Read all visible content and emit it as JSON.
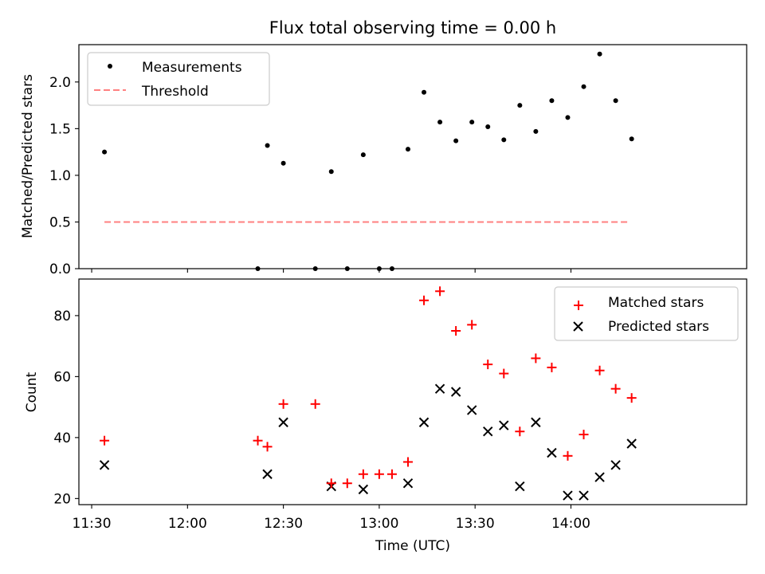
{
  "title": "Flux total observing time = 0.00 h",
  "colors": {
    "measurement": "#000000",
    "threshold": "#ff8080",
    "matched": "#ff0000",
    "predicted": "#000000"
  },
  "chart_data": [
    {
      "type": "scatter",
      "ylabel": "Matched/Predicted stars",
      "xlabel": "",
      "ylim": [
        0,
        2.4
      ],
      "yticks": [
        "0.0",
        "0.5",
        "1.0",
        "1.5",
        "2.0"
      ],
      "xlim": [
        "11:26",
        "14:55"
      ],
      "legend": {
        "placement": "top-left"
      },
      "series": [
        {
          "name": "Measurements",
          "marker": "dot",
          "points": [
            {
              "x": "11:34",
              "y": 1.25
            },
            {
              "x": "12:22",
              "y": 0.0
            },
            {
              "x": "12:25",
              "y": 1.32
            },
            {
              "x": "12:30",
              "y": 1.13
            },
            {
              "x": "12:40",
              "y": 0.0
            },
            {
              "x": "12:45",
              "y": 1.04
            },
            {
              "x": "12:50",
              "y": 0.0
            },
            {
              "x": "12:55",
              "y": 1.22
            },
            {
              "x": "13:00",
              "y": 0.0
            },
            {
              "x": "13:04",
              "y": 0.0
            },
            {
              "x": "13:09",
              "y": 1.28
            },
            {
              "x": "13:14",
              "y": 1.89
            },
            {
              "x": "13:19",
              "y": 1.57
            },
            {
              "x": "13:24",
              "y": 1.37
            },
            {
              "x": "13:29",
              "y": 1.57
            },
            {
              "x": "13:34",
              "y": 1.52
            },
            {
              "x": "13:39",
              "y": 1.38
            },
            {
              "x": "13:44",
              "y": 1.75
            },
            {
              "x": "13:49",
              "y": 1.47
            },
            {
              "x": "13:54",
              "y": 1.8
            },
            {
              "x": "13:59",
              "y": 1.62
            },
            {
              "x": "14:04",
              "y": 1.95
            },
            {
              "x": "14:09",
              "y": 2.3
            },
            {
              "x": "14:14",
              "y": 1.8
            },
            {
              "x": "14:19",
              "y": 1.39
            }
          ]
        },
        {
          "name": "Threshold",
          "marker": "dashed-line",
          "points": [
            {
              "x": "11:34",
              "y": 0.5
            },
            {
              "x": "14:18",
              "y": 0.5
            }
          ]
        }
      ]
    },
    {
      "type": "scatter",
      "ylabel": "Count",
      "xlabel": "Time (UTC)",
      "ylim": [
        18,
        92
      ],
      "yticks": [
        "20",
        "40",
        "60",
        "80"
      ],
      "xlim": [
        "11:26",
        "14:55"
      ],
      "xticks": [
        "11:30",
        "12:00",
        "12:30",
        "13:00",
        "13:30",
        "14:00"
      ],
      "legend": {
        "placement": "top-right"
      },
      "series": [
        {
          "name": "Matched stars",
          "marker": "plus",
          "points": [
            {
              "x": "11:34",
              "y": 39
            },
            {
              "x": "12:22",
              "y": 39
            },
            {
              "x": "12:25",
              "y": 37
            },
            {
              "x": "12:30",
              "y": 51
            },
            {
              "x": "12:40",
              "y": 51
            },
            {
              "x": "12:45",
              "y": 25
            },
            {
              "x": "12:50",
              "y": 25
            },
            {
              "x": "12:55",
              "y": 28
            },
            {
              "x": "13:00",
              "y": 28
            },
            {
              "x": "13:04",
              "y": 28
            },
            {
              "x": "13:09",
              "y": 32
            },
            {
              "x": "13:14",
              "y": 85
            },
            {
              "x": "13:19",
              "y": 88
            },
            {
              "x": "13:24",
              "y": 75
            },
            {
              "x": "13:29",
              "y": 77
            },
            {
              "x": "13:34",
              "y": 64
            },
            {
              "x": "13:39",
              "y": 61
            },
            {
              "x": "13:44",
              "y": 42
            },
            {
              "x": "13:49",
              "y": 66
            },
            {
              "x": "13:54",
              "y": 63
            },
            {
              "x": "13:59",
              "y": 34
            },
            {
              "x": "14:04",
              "y": 41
            },
            {
              "x": "14:09",
              "y": 62
            },
            {
              "x": "14:14",
              "y": 56
            },
            {
              "x": "14:19",
              "y": 53
            }
          ]
        },
        {
          "name": "Predicted stars",
          "marker": "x",
          "points": [
            {
              "x": "11:34",
              "y": 31
            },
            {
              "x": "12:25",
              "y": 28
            },
            {
              "x": "12:30",
              "y": 45
            },
            {
              "x": "12:45",
              "y": 24
            },
            {
              "x": "12:55",
              "y": 23
            },
            {
              "x": "13:09",
              "y": 25
            },
            {
              "x": "13:14",
              "y": 45
            },
            {
              "x": "13:19",
              "y": 56
            },
            {
              "x": "13:24",
              "y": 55
            },
            {
              "x": "13:29",
              "y": 49
            },
            {
              "x": "13:34",
              "y": 42
            },
            {
              "x": "13:39",
              "y": 44
            },
            {
              "x": "13:44",
              "y": 24
            },
            {
              "x": "13:49",
              "y": 45
            },
            {
              "x": "13:54",
              "y": 35
            },
            {
              "x": "13:59",
              "y": 21
            },
            {
              "x": "14:04",
              "y": 21
            },
            {
              "x": "14:09",
              "y": 27
            },
            {
              "x": "14:14",
              "y": 31
            },
            {
              "x": "14:19",
              "y": 38
            }
          ]
        }
      ]
    }
  ]
}
